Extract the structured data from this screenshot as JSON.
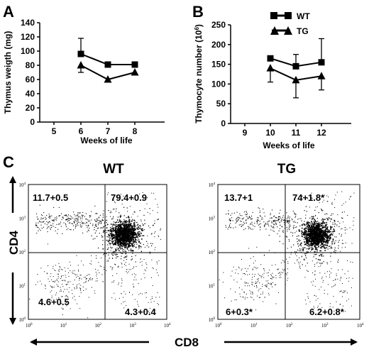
{
  "panels": {
    "a": "A",
    "b": "B",
    "c": "C"
  },
  "chart_data": [
    {
      "id": "A",
      "type": "line",
      "xlabel": "Weeks of life",
      "ylabel": "Thymus weigth (mg)",
      "x_ticks": [
        "5",
        "6",
        "7",
        "8"
      ],
      "y_ticks": [
        "0",
        "20",
        "40",
        "60",
        "80",
        "100",
        "120",
        "140"
      ],
      "ylim": [
        0,
        140
      ],
      "series": [
        {
          "marker": "square",
          "x": [
            "6",
            "7",
            "8"
          ],
          "values": [
            96,
            81,
            81
          ],
          "err_up": [
            22,
            0,
            0
          ],
          "err_down": [
            0,
            0,
            0
          ]
        },
        {
          "marker": "triangle",
          "x": [
            "6",
            "7",
            "8"
          ],
          "values": [
            80,
            60,
            70
          ],
          "err_up": [
            0,
            0,
            0
          ],
          "err_down": [
            10,
            0,
            0
          ]
        }
      ]
    },
    {
      "id": "B",
      "type": "line",
      "xlabel": "Weeks of life",
      "ylabel": "Thymocyte number (10",
      "ylabel_sup": "6",
      "ylabel_end": ")",
      "x_ticks": [
        "9",
        "10",
        "11",
        "12"
      ],
      "y_ticks": [
        "0",
        "50",
        "100",
        "150",
        "200",
        "250"
      ],
      "ylim": [
        0,
        250
      ],
      "legend": [
        "WT",
        "TG"
      ],
      "series": [
        {
          "name": "WT",
          "marker": "square",
          "x": [
            "10",
            "11",
            "12"
          ],
          "values": [
            165,
            145,
            155
          ],
          "err_up": [
            0,
            30,
            60
          ],
          "err_down": [
            0,
            0,
            0
          ]
        },
        {
          "name": "TG",
          "marker": "triangle",
          "x": [
            "10",
            "11",
            "12"
          ],
          "values": [
            140,
            110,
            120
          ],
          "err_up": [
            0,
            0,
            0
          ],
          "err_down": [
            35,
            45,
            35
          ]
        }
      ]
    },
    {
      "id": "C-WT",
      "type": "scatter",
      "title": "WT",
      "xlabel": "CD8",
      "ylabel": "CD4",
      "axis_ticks": [
        "10",
        "10",
        "10",
        "10",
        "10"
      ],
      "axis_exps": [
        "0",
        "1",
        "2",
        "3",
        "4"
      ],
      "quadrants": {
        "upper_left": "11.7+0.5",
        "upper_right": "79.4+0.9",
        "lower_left": "4.6+0.5",
        "lower_right": "4.3+0.4"
      }
    },
    {
      "id": "C-TG",
      "type": "scatter",
      "title": "TG",
      "xlabel": "CD8",
      "ylabel": "CD4",
      "axis_ticks": [
        "10",
        "10",
        "10",
        "10",
        "10"
      ],
      "axis_exps": [
        "0",
        "1",
        "2",
        "3",
        "4"
      ],
      "quadrants": {
        "upper_left": "13.7+1",
        "upper_right": "74+1.8*",
        "lower_left": "6+0.3*",
        "lower_right": "6.2+0.8*"
      }
    }
  ]
}
